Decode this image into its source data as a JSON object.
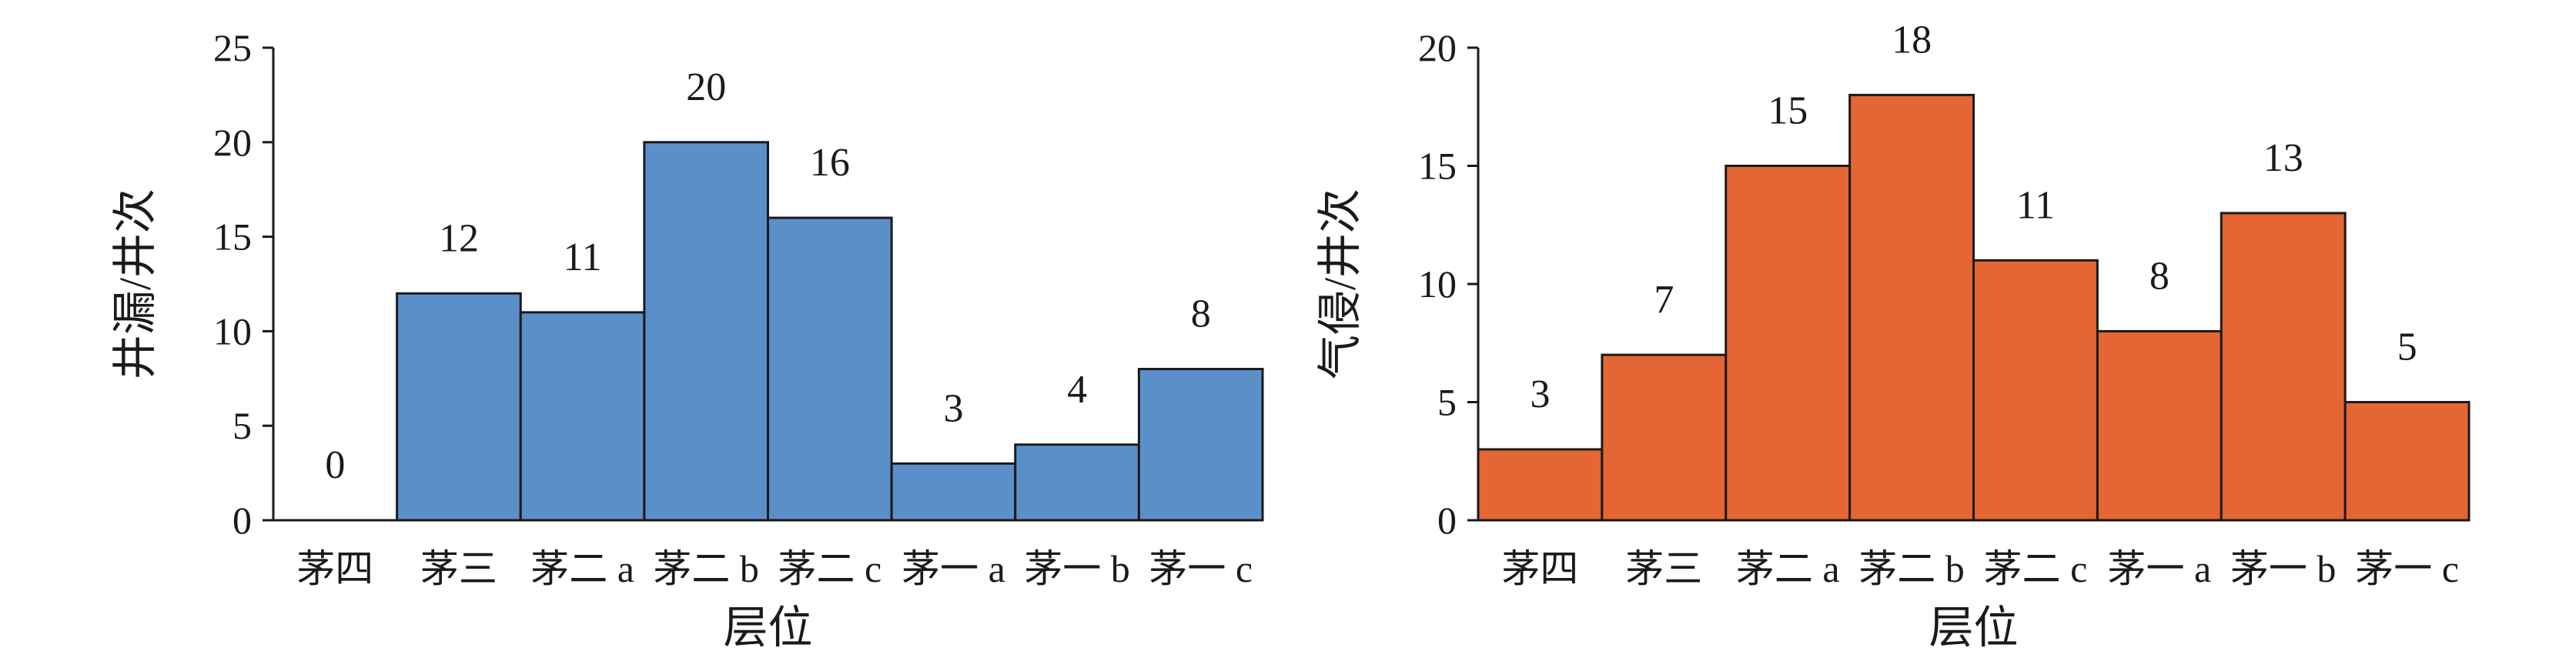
{
  "chart_data": [
    {
      "type": "bar",
      "categories": [
        "茅四",
        "茅三",
        "茅二 a",
        "茅二 b",
        "茅二 c",
        "茅一 a",
        "茅一 b",
        "茅一 c"
      ],
      "values": [
        0,
        12,
        11,
        20,
        16,
        3,
        4,
        8
      ],
      "data_labels": [
        "0",
        "12",
        "11",
        "20",
        "16",
        "3",
        "4",
        "8"
      ],
      "xlabel": "层位",
      "ylabel": "井漏/井次",
      "ylim": [
        0,
        25
      ],
      "yticks": [
        0,
        5,
        10,
        15,
        20,
        25
      ],
      "ytick_labels": [
        "0",
        "5",
        "10",
        "15",
        "20",
        "25"
      ],
      "grid": false,
      "legend": "none",
      "bar_color": "#5b8fc9"
    },
    {
      "type": "bar",
      "categories": [
        "茅四",
        "茅三",
        "茅二 a",
        "茅二 b",
        "茅二 c",
        "茅一 a",
        "茅一 b",
        "茅一 c"
      ],
      "values": [
        3,
        7,
        15,
        18,
        11,
        8,
        13,
        5
      ],
      "data_labels": [
        "3",
        "7",
        "15",
        "18",
        "11",
        "8",
        "13",
        "5"
      ],
      "xlabel": "层位",
      "ylabel": "气侵/井次",
      "ylim": [
        0,
        20
      ],
      "yticks": [
        0,
        5,
        10,
        15,
        20
      ],
      "ytick_labels": [
        "0",
        "5",
        "10",
        "15",
        "20"
      ],
      "grid": false,
      "legend": "none",
      "bar_color": "#e36634"
    }
  ]
}
